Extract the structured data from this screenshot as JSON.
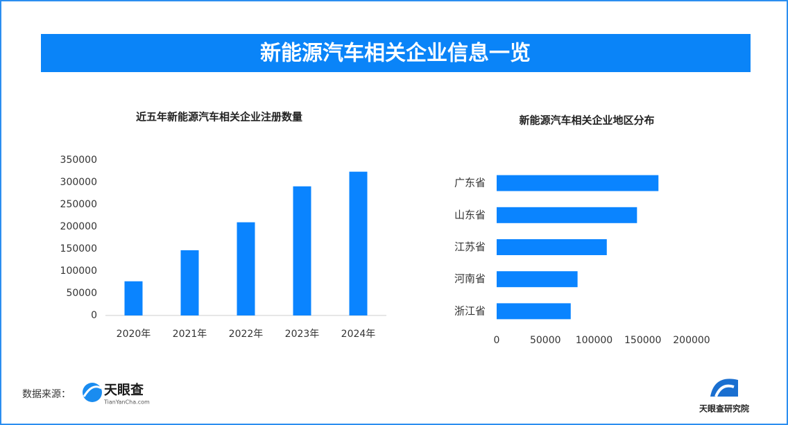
{
  "header": {
    "title": "新能源汽车相关企业信息一览"
  },
  "chart_data": [
    {
      "type": "bar",
      "title": "近五年新能源汽车相关企业注册数量",
      "categories": [
        "2020年",
        "2021年",
        "2022年",
        "2023年",
        "2024年"
      ],
      "values": [
        77000,
        147000,
        210000,
        291000,
        324000
      ],
      "color": "#0a84ff",
      "ylim": [
        0,
        350000
      ],
      "yticks": [
        0,
        50000,
        100000,
        150000,
        200000,
        250000,
        300000,
        350000
      ],
      "grid": false
    },
    {
      "type": "barh",
      "title": "新能源汽车相关企业地区分布",
      "categories": [
        "广东省",
        "山东省",
        "江苏省",
        "河南省",
        "浙江省"
      ],
      "values": [
        166000,
        144000,
        113000,
        83000,
        76000
      ],
      "color": "#0a84ff",
      "xlim": [
        0,
        200000
      ],
      "xticks": [
        0,
        50000,
        100000,
        150000,
        200000
      ],
      "grid": false
    }
  ],
  "footer": {
    "source_label": "数据来源：",
    "logo": "天眼查",
    "logo_url": "TianYanCha.com",
    "institute": "天眼查研究院"
  }
}
